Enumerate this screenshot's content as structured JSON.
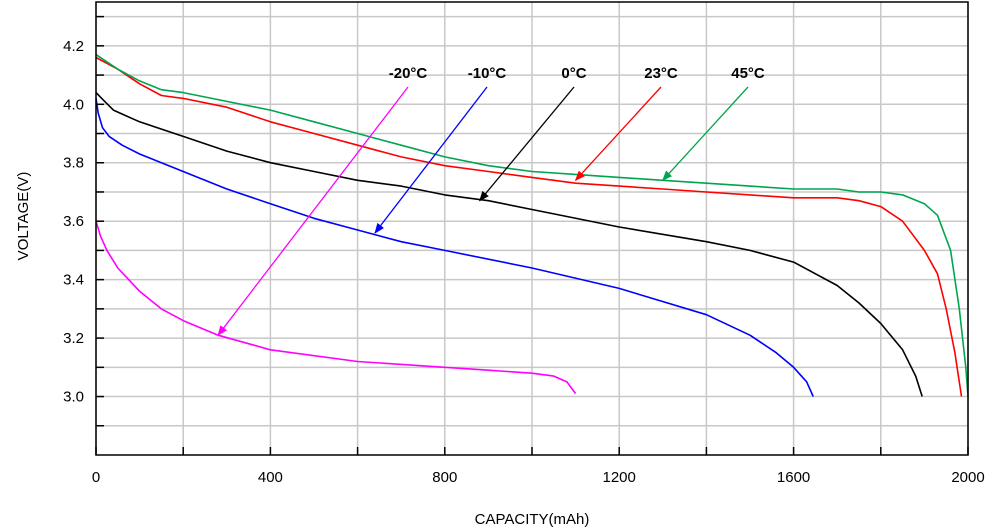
{
  "chart_data": {
    "type": "line",
    "title": "",
    "xlabel": "CAPACITY(mAh)",
    "ylabel": "VOLTAGE(V)",
    "xlim": [
      0,
      2000
    ],
    "ylim": [
      2.8,
      4.35
    ],
    "xticks": [
      "0",
      "400",
      "800",
      "1200",
      "1600",
      "2000"
    ],
    "yticks": [
      "3.0",
      "3.2",
      "3.4",
      "3.6",
      "3.8",
      "4.0",
      "4.2"
    ],
    "grid": true,
    "series": [
      {
        "name": "-20°C",
        "color": "#ff00ff",
        "x": [
          0,
          10,
          25,
          50,
          100,
          150,
          200,
          280,
          400,
          600,
          800,
          900,
          1000,
          1050,
          1080,
          1100
        ],
        "y": [
          3.6,
          3.55,
          3.5,
          3.44,
          3.36,
          3.3,
          3.26,
          3.21,
          3.16,
          3.12,
          3.1,
          3.09,
          3.08,
          3.07,
          3.05,
          3.01
        ]
      },
      {
        "name": "-10°C",
        "color": "#0000ff",
        "x": [
          0,
          5,
          15,
          30,
          60,
          100,
          200,
          300,
          400,
          500,
          600,
          700,
          800,
          1000,
          1200,
          1400,
          1500,
          1560,
          1600,
          1630,
          1645
        ],
        "y": [
          4.02,
          3.97,
          3.92,
          3.89,
          3.86,
          3.83,
          3.77,
          3.71,
          3.66,
          3.61,
          3.57,
          3.53,
          3.5,
          3.44,
          3.37,
          3.28,
          3.21,
          3.15,
          3.1,
          3.05,
          3.0
        ]
      },
      {
        "name": "0°C",
        "color": "#000000",
        "x": [
          0,
          20,
          40,
          70,
          100,
          200,
          300,
          400,
          500,
          600,
          700,
          800,
          900,
          1000,
          1200,
          1400,
          1500,
          1600,
          1700,
          1750,
          1800,
          1850,
          1880,
          1895
        ],
        "y": [
          4.04,
          4.01,
          3.98,
          3.96,
          3.94,
          3.89,
          3.84,
          3.8,
          3.77,
          3.74,
          3.72,
          3.69,
          3.67,
          3.64,
          3.58,
          3.53,
          3.5,
          3.46,
          3.38,
          3.32,
          3.25,
          3.16,
          3.07,
          3.0
        ]
      },
      {
        "name": "23°C",
        "color": "#ff0000",
        "x": [
          0,
          50,
          100,
          150,
          200,
          300,
          400,
          500,
          600,
          700,
          800,
          900,
          1000,
          1100,
          1200,
          1300,
          1400,
          1500,
          1600,
          1700,
          1750,
          1800,
          1850,
          1900,
          1930,
          1950,
          1970,
          1985
        ],
        "y": [
          4.16,
          4.12,
          4.07,
          4.03,
          4.02,
          3.99,
          3.94,
          3.9,
          3.86,
          3.82,
          3.79,
          3.77,
          3.75,
          3.73,
          3.72,
          3.71,
          3.7,
          3.69,
          3.68,
          3.68,
          3.67,
          3.65,
          3.6,
          3.5,
          3.42,
          3.3,
          3.15,
          3.0
        ]
      },
      {
        "name": "45°C",
        "color": "#00a550",
        "x": [
          0,
          50,
          100,
          150,
          200,
          300,
          400,
          500,
          600,
          700,
          800,
          900,
          1000,
          1100,
          1200,
          1300,
          1400,
          1500,
          1600,
          1700,
          1750,
          1800,
          1850,
          1900,
          1930,
          1960,
          1980,
          1995,
          2000
        ],
        "y": [
          4.17,
          4.12,
          4.08,
          4.05,
          4.04,
          4.01,
          3.98,
          3.94,
          3.9,
          3.86,
          3.82,
          3.79,
          3.77,
          3.76,
          3.75,
          3.74,
          3.73,
          3.72,
          3.71,
          3.71,
          3.7,
          3.7,
          3.69,
          3.66,
          3.62,
          3.5,
          3.3,
          3.1,
          3.0
        ]
      }
    ],
    "annotations": [
      {
        "label": "-20°C",
        "to": [
          280,
          3.21
        ]
      },
      {
        "label": "-10°C",
        "to": [
          640,
          3.56
        ]
      },
      {
        "label": "0°C",
        "to": [
          880,
          3.67
        ]
      },
      {
        "label": "23°C",
        "to": [
          1100,
          3.74
        ]
      },
      {
        "label": "45°C",
        "to": [
          1300,
          3.74
        ]
      }
    ]
  }
}
